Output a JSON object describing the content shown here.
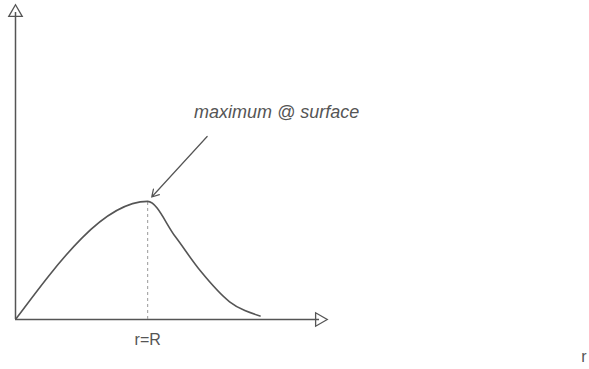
{
  "chart_data": {
    "type": "line",
    "x_label": "r",
    "x": [
      0,
      1,
      1.21,
      1.4,
      1.62,
      1.85
    ],
    "values": [
      0,
      1,
      0.7,
      0.41,
      0.15,
      0.03
    ],
    "color": "#555555",
    "xlim": [
      0,
      2.3
    ],
    "ylim": [
      0,
      2.6
    ],
    "xticks": [
      {
        "value": 1,
        "label": "r=R"
      }
    ],
    "yticks": [],
    "grid": false,
    "tick_labels": "x",
    "line_style": "solid",
    "annotations": [
      {
        "text": "maximum @ surface",
        "x": 1,
        "y": 1
      }
    ]
  }
}
